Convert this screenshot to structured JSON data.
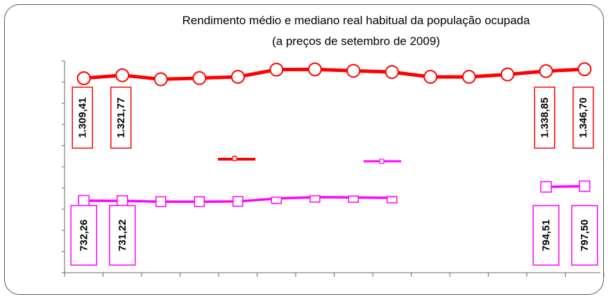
{
  "chart_data": {
    "type": "line",
    "title": "Rendimento médio e mediano real habitual da população ocupada",
    "subtitle": "(a preços de setembro de 2009)",
    "xlabel": "",
    "ylabel": "",
    "categories": [
      "",
      "",
      "",
      "",
      "",
      "",
      "",
      "",
      "",
      "",
      "",
      "",
      "",
      ""
    ],
    "series": [
      {
        "color": "#ff0000",
        "values": [
          1309.41,
          1321.77,
          1305,
          1310,
          1315,
          1345,
          1346,
          1340,
          1335,
          1315,
          1315,
          1325,
          1338.85,
          1346.7
        ],
        "data_labels": [
          "1.309,41",
          "1.321,77",
          "",
          "",
          "",
          "",
          "",
          "",
          "",
          "",
          "",
          "",
          "1.338,85",
          "1.346,70"
        ]
      },
      {
        "color": "#ff00ff",
        "values": [
          732.26,
          731.22,
          728,
          728,
          729,
          742,
          748,
          747,
          745,
          null,
          null,
          null,
          794.51,
          797.5
        ],
        "data_labels": [
          "732,26",
          "731,22",
          "",
          "",
          "",
          "",
          "",
          "",
          "",
          "",
          "",
          "",
          "794,51",
          "797,50"
        ]
      }
    ],
    "legend": "none",
    "grid": false
  }
}
